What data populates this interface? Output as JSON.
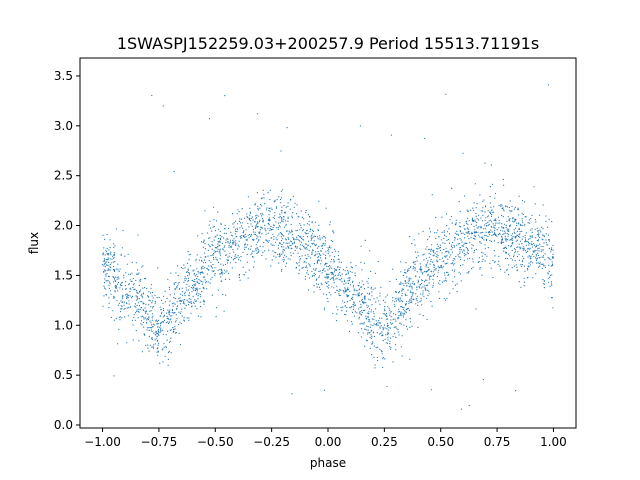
{
  "chart_data": {
    "type": "scatter",
    "title": "1SWASPJ152259.03+200257.9 Period 15513.71191s",
    "xlabel": "phase",
    "ylabel": "flux",
    "xlim": [
      -1.1,
      1.1
    ],
    "ylim": [
      -0.03,
      3.68
    ],
    "x_ticks": [
      -1.0,
      -0.75,
      -0.5,
      -0.25,
      0.0,
      0.25,
      0.5,
      0.75,
      1.0
    ],
    "x_tick_labels": [
      "−1.00",
      "−0.75",
      "−0.50",
      "−0.25",
      "0.00",
      "0.25",
      "0.50",
      "0.75",
      "1.00"
    ],
    "y_ticks": [
      0.0,
      0.5,
      1.0,
      1.5,
      2.0,
      2.5,
      3.0,
      3.5
    ],
    "y_tick_labels": [
      "0.0",
      "0.5",
      "1.0",
      "1.5",
      "2.0",
      "2.5",
      "3.0",
      "3.5"
    ],
    "grid": false,
    "marker_color": "#1f77b4",
    "series": [
      {
        "x_range": [
          -1.0,
          1.0
        ],
        "trend": {
          "phase": [
            -1.0,
            -0.9,
            -0.75,
            -0.6,
            -0.5,
            -0.3,
            -0.25,
            -0.1,
            0.0,
            0.1,
            0.25,
            0.4,
            0.5,
            0.7,
            0.75,
            0.9,
            1.0
          ],
          "flux": [
            1.6,
            1.35,
            0.98,
            1.4,
            1.7,
            1.95,
            1.95,
            1.8,
            1.6,
            1.3,
            0.98,
            1.45,
            1.7,
            1.95,
            1.95,
            1.8,
            1.65
          ]
        },
        "scatter_spread": 0.18,
        "outlier_range": [
          0.1,
          3.55
        ]
      }
    ]
  }
}
